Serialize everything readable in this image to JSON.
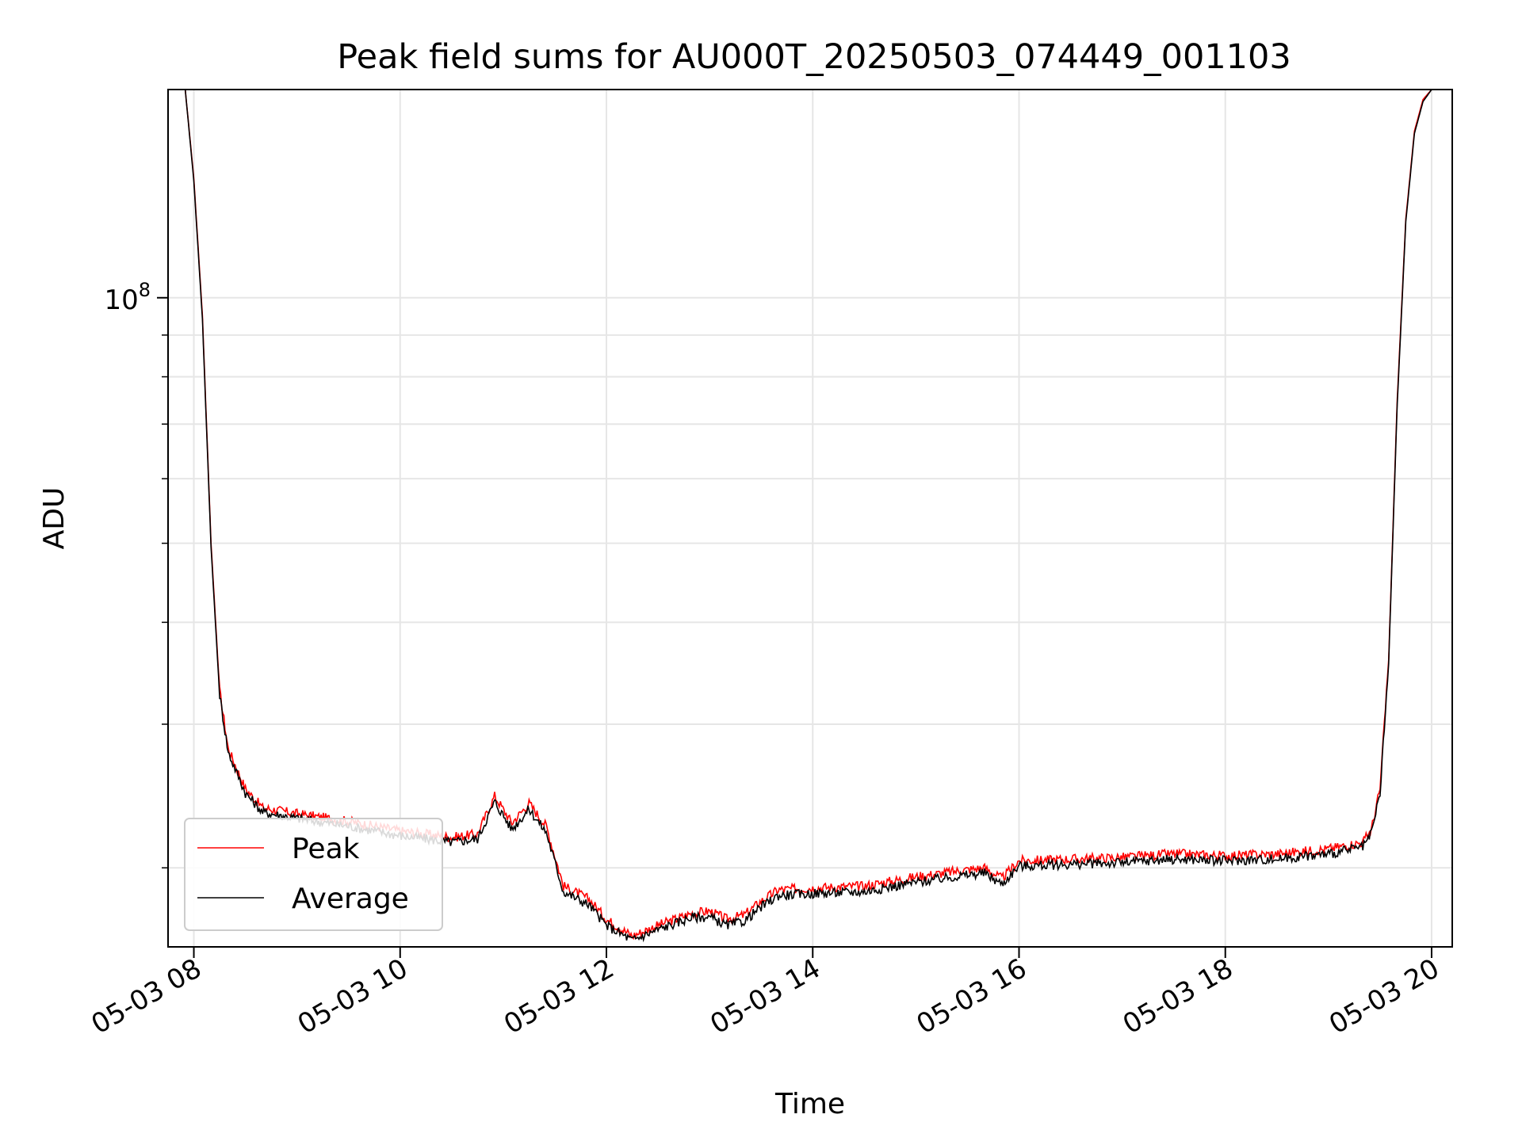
{
  "chart_data": {
    "type": "line",
    "title": "Peak field sums for AU000T_20250503_074449_001103",
    "xlabel": "Time",
    "ylabel": "ADU",
    "yscale": "log",
    "xlim": [
      "05-03 07:45",
      "05-03 20:12"
    ],
    "ylim": [
      16000000,
      180000000
    ],
    "grid": true,
    "legend": {
      "position": "lower-left",
      "entries": [
        "Peak",
        "Average"
      ]
    },
    "x_ticks": [
      "05-03 08",
      "05-03 10",
      "05-03 12",
      "05-03 14",
      "05-03 16",
      "05-03 18",
      "05-03 20"
    ],
    "y_ticks": [
      {
        "value": 100000000,
        "base": "10",
        "exponent": "8"
      }
    ],
    "y_minor_ticks": [
      20000000,
      30000000,
      40000000,
      50000000,
      60000000,
      70000000,
      80000000,
      90000000
    ],
    "series": [
      {
        "name": "Peak",
        "color": "#ff0000",
        "x": [
          "05-03 07:45",
          "05-03 07:55",
          "05-03 08:00",
          "05-03 08:05",
          "05-03 08:10",
          "05-03 08:15",
          "05-03 08:20",
          "05-03 08:30",
          "05-03 08:40",
          "05-03 09:00",
          "05-03 09:30",
          "05-03 10:00",
          "05-03 10:30",
          "05-03 10:45",
          "05-03 10:55",
          "05-03 11:05",
          "05-03 11:15",
          "05-03 11:25",
          "05-03 11:35",
          "05-03 11:50",
          "05-03 12:00",
          "05-03 12:15",
          "05-03 12:30",
          "05-03 12:50",
          "05-03 13:00",
          "05-03 13:10",
          "05-03 13:20",
          "05-03 13:30",
          "05-03 13:40",
          "05-03 14:00",
          "05-03 14:30",
          "05-03 15:00",
          "05-03 15:30",
          "05-03 15:40",
          "05-03 15:50",
          "05-03 16:00",
          "05-03 16:30",
          "05-03 17:00",
          "05-03 17:30",
          "05-03 18:00",
          "05-03 18:30",
          "05-03 19:00",
          "05-03 19:20",
          "05-03 19:25",
          "05-03 19:30",
          "05-03 19:35",
          "05-03 19:40",
          "05-03 19:45",
          "05-03 19:50",
          "05-03 19:55",
          "05-03 20:00",
          "05-03 20:12"
        ],
        "y": [
          180000000,
          180000000,
          140000000,
          95000000,
          50000000,
          33000000,
          28000000,
          25000000,
          23700000,
          23300000,
          22800000,
          22200000,
          21800000,
          22000000,
          24500000,
          22700000,
          24000000,
          22500000,
          19000000,
          18300000,
          17300000,
          16500000,
          17000000,
          17600000,
          17700000,
          17300000,
          17500000,
          18200000,
          18800000,
          18900000,
          19000000,
          19500000,
          19900000,
          20000000,
          19400000,
          20400000,
          20500000,
          20600000,
          20800000,
          20700000,
          20800000,
          21100000,
          21500000,
          22300000,
          25000000,
          36000000,
          75000000,
          125000000,
          160000000,
          175000000,
          180000000,
          180000000
        ]
      },
      {
        "name": "Average",
        "color": "#000000",
        "x": [
          "05-03 07:45",
          "05-03 07:55",
          "05-03 08:00",
          "05-03 08:05",
          "05-03 08:10",
          "05-03 08:15",
          "05-03 08:20",
          "05-03 08:30",
          "05-03 08:40",
          "05-03 09:00",
          "05-03 09:30",
          "05-03 10:00",
          "05-03 10:30",
          "05-03 10:45",
          "05-03 10:55",
          "05-03 11:05",
          "05-03 11:15",
          "05-03 11:25",
          "05-03 11:35",
          "05-03 11:50",
          "05-03 12:00",
          "05-03 12:15",
          "05-03 12:30",
          "05-03 12:50",
          "05-03 13:00",
          "05-03 13:10",
          "05-03 13:20",
          "05-03 13:30",
          "05-03 13:40",
          "05-03 14:00",
          "05-03 14:30",
          "05-03 15:00",
          "05-03 15:30",
          "05-03 15:40",
          "05-03 15:50",
          "05-03 16:00",
          "05-03 16:30",
          "05-03 17:00",
          "05-03 17:30",
          "05-03 18:00",
          "05-03 18:30",
          "05-03 19:00",
          "05-03 19:20",
          "05-03 19:25",
          "05-03 19:30",
          "05-03 19:35",
          "05-03 19:40",
          "05-03 19:45",
          "05-03 19:50",
          "05-03 19:55",
          "05-03 20:00",
          "05-03 20:12"
        ],
        "y": [
          180000000,
          180000000,
          139000000,
          94000000,
          49500000,
          32600000,
          27700000,
          24700000,
          23400000,
          23000000,
          22500000,
          21900000,
          21500000,
          21700000,
          24100000,
          22300000,
          23600000,
          22100000,
          18700000,
          18000000,
          17000000,
          16300000,
          16800000,
          17400000,
          17400000,
          17000000,
          17200000,
          17900000,
          18500000,
          18600000,
          18700000,
          19200000,
          19600000,
          19700000,
          19100000,
          20100000,
          20200000,
          20300000,
          20500000,
          20400000,
          20500000,
          20800000,
          21200000,
          22000000,
          24700000,
          35600000,
          74000000,
          124000000,
          159000000,
          174000000,
          180000000,
          180000000
        ]
      }
    ]
  }
}
